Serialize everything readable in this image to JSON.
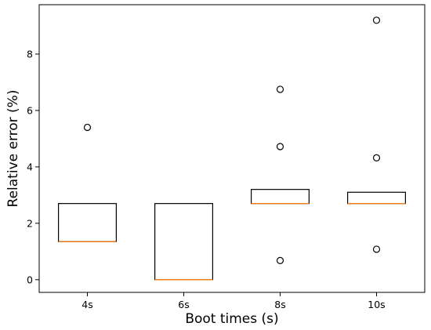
{
  "chart_data": {
    "type": "box",
    "title": "",
    "xlabel": "Boot times (s)",
    "ylabel": "Relative error (%)",
    "categories": [
      "4s",
      "6s",
      "8s",
      "10s"
    ],
    "ylim": [
      -0.45,
      9.75
    ],
    "yticks": [
      0,
      2,
      4,
      6,
      8
    ],
    "grid": false,
    "boxes": [
      {
        "category": "4s",
        "q1": 1.35,
        "median": 1.35,
        "q3": 2.7,
        "whisker_low": 1.35,
        "whisker_high": 2.7,
        "outliers": [
          5.4
        ]
      },
      {
        "category": "6s",
        "q1": 0.0,
        "median": 0.0,
        "q3": 2.7,
        "whisker_low": 0.0,
        "whisker_high": 2.7,
        "outliers": []
      },
      {
        "category": "8s",
        "q1": 2.7,
        "median": 2.7,
        "q3": 3.2,
        "whisker_low": 2.7,
        "whisker_high": 3.2,
        "outliers": [
          0.68,
          4.72,
          6.75
        ]
      },
      {
        "category": "10s",
        "q1": 2.7,
        "median": 2.7,
        "q3": 3.1,
        "whisker_low": 2.7,
        "whisker_high": 3.1,
        "outliers": [
          1.08,
          4.32,
          9.2
        ]
      }
    ],
    "colors": {
      "box": "#000000",
      "median": "#ff7f0e",
      "outlier": "#000000"
    }
  }
}
